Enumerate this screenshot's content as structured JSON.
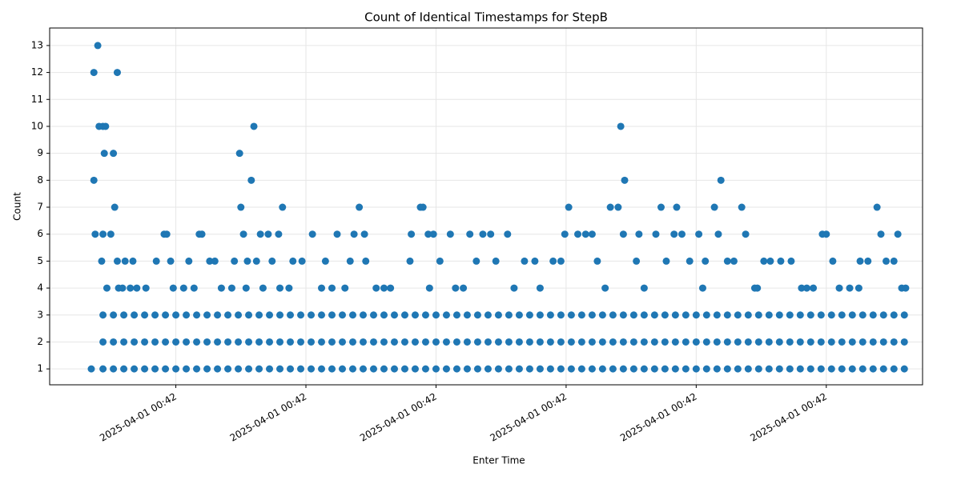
{
  "chart_data": {
    "type": "scatter",
    "title": "Count of Identical Timestamps for StepB",
    "xlabel": "Enter Time",
    "ylabel": "Count",
    "color": "#1f77b4",
    "grid": true,
    "xlim": [
      0.03,
      6.74
    ],
    "ylim": [
      0.41,
      13.65
    ],
    "xticks": [
      {
        "value": 1,
        "label": "2025-04-01 00:42"
      },
      {
        "value": 2,
        "label": "2025-04-01 00:42"
      },
      {
        "value": 3,
        "label": "2025-04-01 00:42"
      },
      {
        "value": 4,
        "label": "2025-04-01 00:42"
      },
      {
        "value": 5,
        "label": "2025-04-01 00:42"
      },
      {
        "value": 6,
        "label": "2025-04-01 00:42"
      }
    ],
    "yticks": [
      1,
      2,
      3,
      4,
      5,
      6,
      7,
      8,
      9,
      10,
      11,
      12,
      13
    ],
    "x": [
      0.44,
      0.52,
      0.6,
      0.68,
      0.76,
      0.84,
      0.92,
      1.0,
      1.08,
      1.16,
      1.24,
      1.32,
      1.4,
      1.48,
      1.56,
      1.64,
      1.72,
      1.8,
      1.88,
      1.96,
      2.04,
      2.12,
      2.2,
      2.28,
      2.36,
      2.44,
      2.52,
      2.6,
      2.68,
      2.76,
      2.84,
      2.92,
      3.0,
      3.08,
      3.16,
      3.24,
      3.32,
      3.4,
      3.48,
      3.56,
      3.64,
      3.72,
      3.8,
      3.88,
      3.96,
      4.04,
      4.12,
      4.2,
      4.28,
      4.36,
      4.44,
      4.52,
      4.6,
      4.68,
      4.76,
      4.84,
      4.92,
      5.0,
      5.08,
      5.16,
      5.24,
      5.32,
      5.4,
      5.48,
      5.56,
      5.64,
      5.72,
      5.8,
      5.88,
      5.96,
      6.04,
      6.12,
      6.2,
      6.28,
      6.36,
      6.44,
      6.52,
      6.6,
      0.44,
      0.52,
      0.6,
      0.68,
      0.76,
      0.84,
      0.92,
      1.0,
      1.08,
      1.16,
      1.24,
      1.32,
      1.4,
      1.48,
      1.56,
      1.64,
      1.72,
      1.8,
      1.88,
      1.96,
      2.04,
      2.12,
      2.2,
      2.28,
      2.36,
      2.44,
      2.52,
      2.6,
      2.68,
      2.76,
      2.84,
      2.92,
      3.0,
      3.08,
      3.16,
      3.24,
      3.32,
      3.4,
      3.48,
      3.56,
      3.64,
      3.72,
      3.8,
      3.88,
      3.96,
      4.04,
      4.12,
      4.2,
      4.28,
      4.36,
      4.44,
      4.52,
      4.6,
      4.68,
      4.76,
      4.84,
      4.92,
      5.0,
      5.08,
      5.16,
      5.24,
      5.32,
      5.4,
      5.48,
      5.56,
      5.64,
      5.72,
      5.8,
      5.88,
      5.96,
      6.04,
      6.12,
      6.2,
      6.28,
      6.36,
      6.44,
      6.52,
      6.6,
      0.44,
      0.52,
      0.6,
      0.68,
      0.76,
      0.84,
      0.92,
      1.0,
      1.08,
      1.16,
      1.24,
      1.32,
      1.4,
      1.48,
      1.56,
      1.64,
      1.72,
      1.8,
      1.88,
      1.96,
      2.04,
      2.12,
      2.2,
      2.28,
      2.36,
      2.44,
      2.52,
      2.6,
      2.68,
      2.76,
      2.84,
      2.92,
      3.0,
      3.08,
      3.16,
      3.24,
      3.32,
      3.4,
      3.48,
      3.56,
      3.64,
      3.72,
      3.8,
      3.88,
      3.96,
      4.04,
      4.12,
      4.2,
      4.28,
      4.36,
      4.44,
      4.52,
      4.6,
      4.68,
      4.76,
      4.84,
      4.92,
      5.0,
      5.08,
      5.16,
      5.24,
      5.32,
      5.4,
      5.48,
      5.56,
      5.64,
      5.72,
      5.8,
      5.88,
      5.96,
      6.04,
      6.12,
      6.2,
      6.28,
      6.36,
      6.44,
      6.52,
      6.6,
      0.35,
      0.37,
      0.37,
      0.4,
      0.38,
      0.41,
      0.44,
      0.46,
      0.45,
      0.44,
      0.43,
      0.47,
      0.5,
      0.52,
      0.53,
      0.55,
      0.55,
      0.56,
      0.59,
      0.61,
      0.65,
      0.67,
      0.77,
      0.85,
      0.91,
      0.93,
      0.96,
      0.98,
      1.06,
      1.1,
      1.14,
      1.18,
      1.2,
      1.26,
      1.3,
      1.43,
      1.45,
      1.49,
      1.5,
      1.52,
      1.54,
      1.55,
      1.58,
      1.6,
      1.62,
      1.65,
      1.67,
      1.71,
      1.74,
      1.79,
      1.82,
      1.87,
      1.9,
      1.97,
      2.05,
      2.12,
      2.15,
      2.24,
      2.3,
      2.34,
      2.41,
      2.37,
      2.45,
      2.46,
      2.54,
      2.65,
      2.8,
      2.81,
      2.88,
      2.9,
      2.94,
      2.98,
      3.03,
      3.11,
      3.21,
      3.26,
      3.31,
      3.36,
      3.42,
      3.46,
      3.55,
      3.68,
      3.76,
      3.9,
      3.96,
      3.99,
      4.02,
      4.09,
      4.15,
      4.2,
      4.24,
      4.34,
      4.4,
      4.42,
      4.44,
      4.45,
      4.54,
      4.56,
      4.69,
      4.73,
      4.77,
      4.83,
      4.85,
      4.89,
      4.95,
      5.02,
      5.07,
      5.14,
      5.17,
      5.19,
      5.24,
      5.29,
      5.35,
      5.38,
      5.47,
      5.52,
      5.57,
      5.65,
      5.73,
      5.81,
      5.9,
      5.97,
      6.0,
      6.05,
      6.1,
      6.18,
      6.26,
      6.32,
      6.39,
      6.42,
      6.46,
      6.52,
      6.55,
      6.58,
      6.61,
      0.7,
      1.35,
      1.8,
      2.2,
      2.6,
      2.95,
      3.15,
      3.6,
      3.8,
      4.3,
      4.6,
      5.05,
      5.45,
      5.85,
      6.25
    ],
    "values": [
      1,
      1,
      1,
      1,
      1,
      1,
      1,
      1,
      1,
      1,
      1,
      1,
      1,
      1,
      1,
      1,
      1,
      1,
      1,
      1,
      1,
      1,
      1,
      1,
      1,
      1,
      1,
      1,
      1,
      1,
      1,
      1,
      1,
      1,
      1,
      1,
      1,
      1,
      1,
      1,
      1,
      1,
      1,
      1,
      1,
      1,
      1,
      1,
      1,
      1,
      1,
      1,
      1,
      1,
      1,
      1,
      1,
      1,
      1,
      1,
      1,
      1,
      1,
      1,
      1,
      1,
      1,
      1,
      1,
      1,
      1,
      1,
      1,
      1,
      1,
      1,
      1,
      1,
      2,
      2,
      2,
      2,
      2,
      2,
      2,
      2,
      2,
      2,
      2,
      2,
      2,
      2,
      2,
      2,
      2,
      2,
      2,
      2,
      2,
      2,
      2,
      2,
      2,
      2,
      2,
      2,
      2,
      2,
      2,
      2,
      2,
      2,
      2,
      2,
      2,
      2,
      2,
      2,
      2,
      2,
      2,
      2,
      2,
      2,
      2,
      2,
      2,
      2,
      2,
      2,
      2,
      2,
      2,
      2,
      2,
      2,
      2,
      2,
      2,
      2,
      2,
      2,
      2,
      2,
      2,
      2,
      2,
      2,
      2,
      2,
      2,
      2,
      2,
      2,
      2,
      2,
      3,
      3,
      3,
      3,
      3,
      3,
      3,
      3,
      3,
      3,
      3,
      3,
      3,
      3,
      3,
      3,
      3,
      3,
      3,
      3,
      3,
      3,
      3,
      3,
      3,
      3,
      3,
      3,
      3,
      3,
      3,
      3,
      3,
      3,
      3,
      3,
      3,
      3,
      3,
      3,
      3,
      3,
      3,
      3,
      3,
      3,
      3,
      3,
      3,
      3,
      3,
      3,
      3,
      3,
      3,
      3,
      3,
      3,
      3,
      3,
      3,
      3,
      3,
      3,
      3,
      3,
      3,
      3,
      3,
      3,
      3,
      3,
      3,
      3,
      3,
      3,
      3,
      3,
      1,
      8,
      12,
      13,
      6,
      10,
      10,
      10,
      9,
      6,
      5,
      4,
      6,
      9,
      7,
      12,
      5,
      4,
      4,
      5,
      4,
      5,
      4,
      5,
      6,
      6,
      5,
      4,
      4,
      5,
      4,
      6,
      6,
      5,
      5,
      4,
      5,
      9,
      7,
      6,
      4,
      5,
      8,
      10,
      5,
      6,
      4,
      6,
      5,
      6,
      7,
      4,
      5,
      5,
      6,
      4,
      5,
      6,
      4,
      5,
      7,
      6,
      6,
      5,
      4,
      4,
      5,
      6,
      7,
      7,
      6,
      6,
      5,
      6,
      4,
      6,
      5,
      6,
      6,
      5,
      6,
      5,
      5,
      5,
      5,
      6,
      7,
      6,
      6,
      6,
      5,
      7,
      7,
      10,
      6,
      8,
      5,
      6,
      6,
      7,
      5,
      6,
      7,
      6,
      5,
      6,
      5,
      7,
      6,
      8,
      5,
      5,
      7,
      6,
      4,
      5,
      5,
      5,
      5,
      4,
      4,
      6,
      6,
      5,
      4,
      4,
      5,
      5,
      7,
      6,
      5,
      5,
      6,
      4,
      4,
      4,
      4,
      4,
      4,
      4,
      4,
      4,
      4,
      4,
      4,
      4,
      4,
      4,
      4,
      4
    ]
  }
}
